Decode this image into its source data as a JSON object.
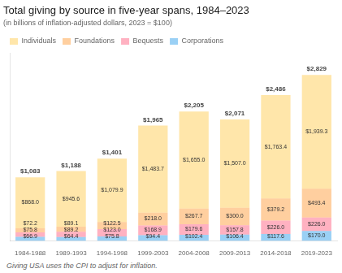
{
  "chart_data": {
    "type": "bar",
    "title": "Total giving by source in five-year spans, 1984–2023",
    "subtitle": "(in billions of inflation-adjusted dollars, 2023 = $100)",
    "footnote": "Giving USA uses the CPI to adjust for inflation.",
    "categories": [
      "1984-1988",
      "1989-1993",
      "1994-1998",
      "1999-2003",
      "2004-2008",
      "2009-2013",
      "2014-2018",
      "2019-2023"
    ],
    "series": [
      {
        "name": "Corporations",
        "values": [
          66.9,
          64.4,
          75.8,
          94.4,
          102.4,
          106.4,
          117.6,
          170.0
        ],
        "value_labels": [
          "$66.9",
          "$64.4",
          "$75.8",
          "$94.4",
          "$102.4",
          "$106.4",
          "$117.6",
          "$170.0"
        ]
      },
      {
        "name": "Bequests",
        "values": [
          75.8,
          89.2,
          123.0,
          168.9,
          179.6,
          157.8,
          226.0,
          226.0
        ],
        "value_labels": [
          "$75.8",
          "$89.2",
          "$123.0",
          "$168.9",
          "$179.6",
          "$157.8",
          "$226.0",
          "$226.0"
        ]
      },
      {
        "name": "Foundations",
        "values": [
          72.2,
          89.1,
          122.5,
          218.0,
          267.7,
          300.0,
          379.2,
          493.4
        ],
        "value_labels": [
          "$72.2",
          "$89.1",
          "$122.5",
          "$218.0",
          "$267.7",
          "$300.0",
          "$379.2",
          "$493.4"
        ]
      },
      {
        "name": "Individuals",
        "values": [
          868.0,
          945.6,
          1079.9,
          1483.7,
          1655.0,
          1507.0,
          1763.4,
          1939.3
        ],
        "value_labels": [
          "$868.0",
          "$945.6",
          "$1,079.9",
          "$1,483.7",
          "$1,655.0",
          "$1,507.0",
          "$1,763.4",
          "$1,939.3"
        ]
      }
    ],
    "totals": [
      1083,
      1188,
      1401,
      1965,
      2205,
      2071,
      2486,
      2829
    ],
    "total_labels": [
      "$1,083",
      "$1,188",
      "$1,401",
      "$1,965",
      "$2,205",
      "$2,071",
      "$2,486",
      "$2,829"
    ],
    "stacked": true,
    "data_labels": true,
    "ylim": [
      0,
      3200
    ],
    "grid": false,
    "legend": "top",
    "tick_labels": "x"
  }
}
